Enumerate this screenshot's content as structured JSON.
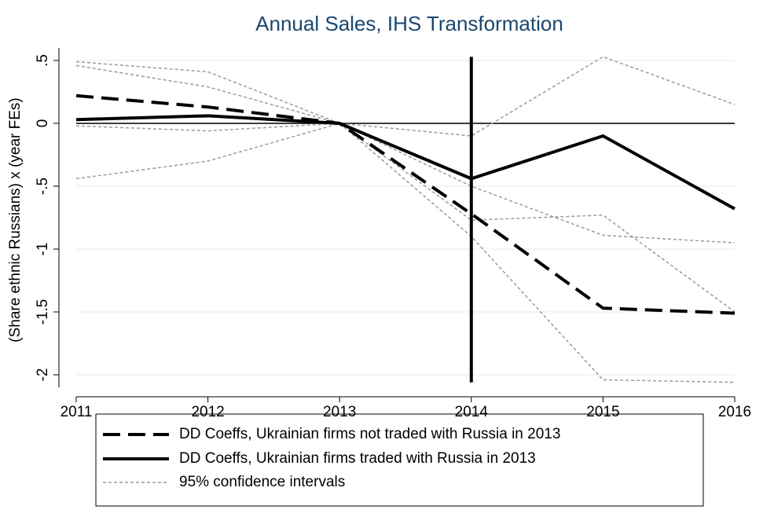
{
  "chart_data": {
    "type": "line",
    "title": "Annual Sales, IHS Transformation",
    "y_label": "(Share ethnic Russians) x (year FEs)",
    "x": [
      2011,
      2012,
      2013,
      2014,
      2015,
      2016
    ],
    "xlim": [
      2011,
      2016
    ],
    "xticks": [
      2011,
      2012,
      2013,
      2014,
      2015,
      2016
    ],
    "ylim": [
      -2.1,
      0.6
    ],
    "yticks": [
      {
        "value": 0.5,
        "label": ".5"
      },
      0,
      {
        "value": -0.5,
        "label": "-.5"
      },
      -1,
      -1.5,
      -2
    ],
    "grid": true,
    "hline": 0,
    "vline": 2014,
    "series": [
      {
        "name": "DD Coeffs, Ukrainian firms not traded with Russia in 2013",
        "color": "#000000",
        "style": "dashed",
        "values": [
          0.22,
          0.13,
          0,
          -0.72,
          -1.47,
          -1.51
        ]
      },
      {
        "name": "DD Coeffs, Ukrainian firms traded with Russia in 2013",
        "color": "#000000",
        "style": "solid",
        "values": [
          0.03,
          0.06,
          0,
          -0.44,
          -0.1,
          -0.68
        ]
      }
    ],
    "confidence_intervals": {
      "name": "95% confidence intervals",
      "color": "#9a9a9a",
      "lines": [
        [
          0.46,
          0.29,
          0,
          -0.5,
          -0.89,
          -0.95
        ],
        [
          -0.02,
          -0.06,
          0,
          -0.9,
          -2.04,
          -2.06
        ],
        [
          0.49,
          0.41,
          0,
          -0.1,
          0.53,
          0.15
        ],
        [
          -0.44,
          -0.3,
          0,
          -0.77,
          -0.73,
          -1.5
        ]
      ]
    }
  }
}
